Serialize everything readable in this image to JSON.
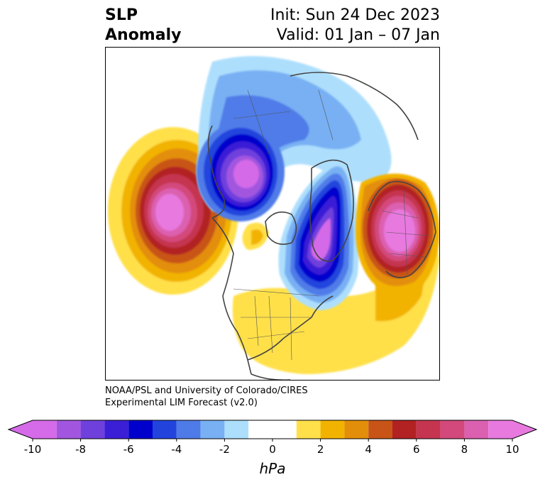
{
  "header": {
    "title_line1": "SLP",
    "title_line2": "Anomaly",
    "init_text": "Init: Sun 24 Dec 2023",
    "valid_text": "Valid: 01 Jan – 07 Jan"
  },
  "credit": {
    "line1": "NOAA/PSL and University of Colorado/CIRES",
    "line2": "Experimental LIM Forecast (v2.0)"
  },
  "colorbar": {
    "units": "hPa",
    "levels": [
      -10,
      -9,
      -8,
      -7,
      -6,
      -5,
      -4,
      -3,
      -2,
      -1,
      1,
      2,
      3,
      4,
      5,
      6,
      7,
      8,
      9,
      10
    ],
    "colors": [
      "#d56be8",
      "#a256e0",
      "#7040dd",
      "#3b1fd6",
      "#0000cc",
      "#2244dd",
      "#4f7be8",
      "#78b0f3",
      "#addffd",
      "#ffffff",
      "#ffe04a",
      "#f2b300",
      "#e38e0a",
      "#c85418",
      "#b22222",
      "#c53550",
      "#d3497b",
      "#dc60b0",
      "#e879df"
    ],
    "tick_labels": [
      "-10",
      "-8",
      "-6",
      "-4",
      "-2",
      "0",
      "2",
      "4",
      "6",
      "8",
      "10"
    ],
    "tick_values": [
      -10,
      -8,
      -6,
      -4,
      -2,
      0,
      2,
      4,
      6,
      8,
      10
    ],
    "extend": "both"
  }
}
